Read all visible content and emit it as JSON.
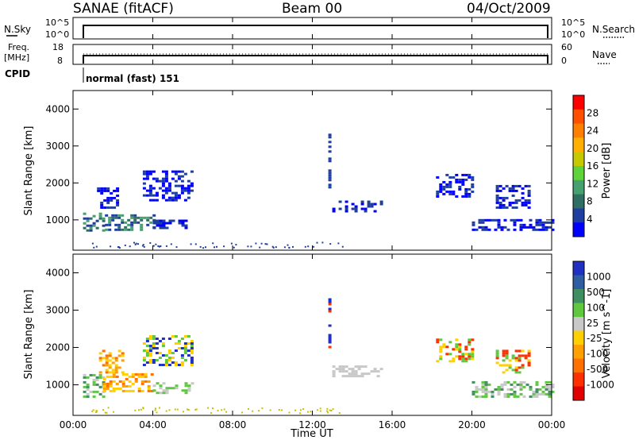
{
  "header": {
    "title": "SANAE (fitACF)",
    "beam": "Beam 00",
    "date": "04/Oct/2009"
  },
  "top_panels": {
    "nsky_label": "N.Sky",
    "nsearch_label": "N.Search",
    "freq_label_line1": "Freq.",
    "freq_label_line2": "[MHz]",
    "nave_label": "Nave",
    "cpid_label": "CPID",
    "cpid_text": "normal (fast) 151",
    "noise_ticks_left": [
      "10^5",
      "10^0"
    ],
    "noise_ticks_right": [
      "10^5",
      "10^0"
    ],
    "freq_ticks": [
      "18",
      "8"
    ],
    "nave_ticks": [
      "60",
      "0"
    ]
  },
  "colorbars": {
    "power": {
      "label": "Power [dB]",
      "ticks": [
        "28",
        "24",
        "20",
        "16",
        "12",
        "8",
        "4"
      ],
      "colors": [
        "#0000ff",
        "#1f3fa0",
        "#2f6e62",
        "#46a070",
        "#5fd33a",
        "#c8c800",
        "#ffb000",
        "#ff8000",
        "#ff5000",
        "#ff0000"
      ]
    },
    "velocity": {
      "label": "Velocity [m s^-1]",
      "ticks": [
        "1000",
        "500",
        "100",
        "25",
        "-25",
        "-100",
        "-500",
        "-1000"
      ],
      "colors": [
        "#2030c0",
        "#2f5ea0",
        "#3f8f60",
        "#5fc83f",
        "#c8c8c8",
        "#ffd000",
        "#ffa000",
        "#ff7000",
        "#ff3000",
        "#e00000"
      ]
    }
  },
  "chart_data": [
    {
      "type": "heatmap",
      "name": "power",
      "ylabel": "Slant Range [km]",
      "ylim": [
        180,
        4500
      ],
      "yticks": [
        "4000",
        "3000",
        "2000",
        "1000"
      ],
      "xlim": [
        0,
        24
      ],
      "regions": [
        {
          "t0": 0.5,
          "t1": 1.6,
          "r0": 680,
          "r1": 1180,
          "levels": [
            2,
            3,
            1
          ]
        },
        {
          "t0": 1.6,
          "t1": 4.0,
          "r0": 700,
          "r1": 1150,
          "levels": [
            1,
            2,
            3
          ]
        },
        {
          "t0": 1.2,
          "t1": 2.2,
          "r0": 1300,
          "r1": 1850,
          "levels": [
            1,
            0
          ]
        },
        {
          "t0": 4.0,
          "t1": 6.0,
          "r0": 750,
          "r1": 1000,
          "levels": [
            1,
            0
          ]
        },
        {
          "t0": 3.5,
          "t1": 6.0,
          "r0": 1500,
          "r1": 2300,
          "levels": [
            1,
            0
          ]
        },
        {
          "t0": 12.8,
          "t1": 12.9,
          "r0": 1850,
          "r1": 3300,
          "levels": [
            1
          ]
        },
        {
          "t0": 13.0,
          "t1": 15.5,
          "r0": 1200,
          "r1": 1500,
          "levels": [
            0,
            1
          ]
        },
        {
          "t0": 18.2,
          "t1": 20.0,
          "r0": 1600,
          "r1": 2200,
          "levels": [
            1,
            0
          ]
        },
        {
          "t0": 20.0,
          "t1": 24.0,
          "r0": 700,
          "r1": 1000,
          "levels": [
            0,
            1
          ]
        },
        {
          "t0": 21.2,
          "t1": 22.8,
          "r0": 1300,
          "r1": 1900,
          "levels": [
            1,
            0
          ]
        }
      ]
    },
    {
      "type": "heatmap",
      "name": "velocity",
      "ylabel": "Slant Range [km]",
      "ylim": [
        180,
        4500
      ],
      "yticks": [
        "4000",
        "3000",
        "2000",
        "1000"
      ],
      "xlim": [
        0,
        24
      ],
      "regions": [
        {
          "t0": 0.5,
          "t1": 1.5,
          "r0": 650,
          "r1": 1250,
          "levels": [
            4,
            3,
            2
          ]
        },
        {
          "t0": 1.5,
          "t1": 4.0,
          "r0": 800,
          "r1": 1300,
          "levels": [
            7,
            6,
            5
          ]
        },
        {
          "t0": 1.3,
          "t1": 2.5,
          "r0": 1300,
          "r1": 1900,
          "levels": [
            6,
            7,
            5
          ]
        },
        {
          "t0": 4.0,
          "t1": 6.0,
          "r0": 750,
          "r1": 1050,
          "levels": [
            3,
            4
          ]
        },
        {
          "t0": 3.5,
          "t1": 6.0,
          "r0": 1500,
          "r1": 2300,
          "levels": [
            3,
            5,
            0
          ]
        },
        {
          "t0": 12.8,
          "t1": 12.9,
          "r0": 1850,
          "r1": 3300,
          "levels": [
            8,
            0
          ]
        },
        {
          "t0": 13.0,
          "t1": 15.5,
          "r0": 1200,
          "r1": 1500,
          "levels": [
            4
          ]
        },
        {
          "t0": 18.2,
          "t1": 20.0,
          "r0": 1600,
          "r1": 2200,
          "levels": [
            3,
            5,
            8
          ]
        },
        {
          "t0": 20.0,
          "t1": 24.0,
          "r0": 650,
          "r1": 1050,
          "levels": [
            3,
            4,
            2
          ]
        },
        {
          "t0": 21.2,
          "t1": 22.8,
          "r0": 1300,
          "r1": 1900,
          "levels": [
            8,
            5,
            3
          ]
        }
      ]
    }
  ],
  "x_axis": {
    "ticks": [
      "00:00",
      "04:00",
      "08:00",
      "12:00",
      "16:00",
      "20:00",
      "00:00"
    ],
    "label": "Time UT"
  }
}
